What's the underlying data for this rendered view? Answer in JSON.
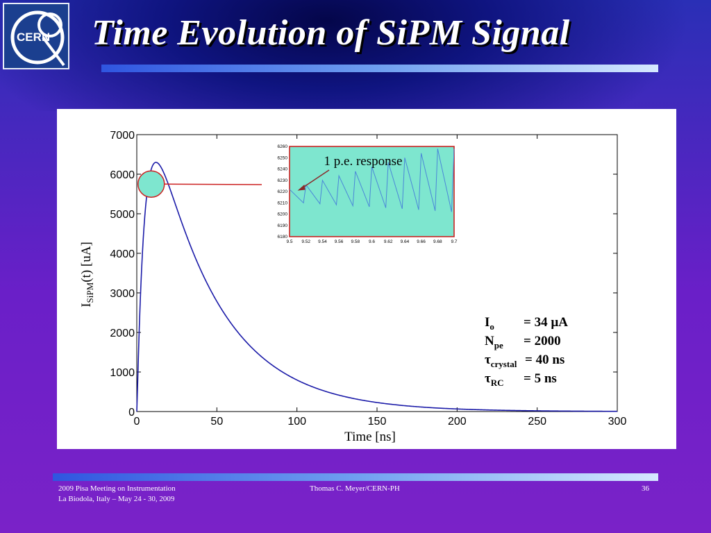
{
  "slide": {
    "title": "Time Evolution of SiPM Signal",
    "logo_text": "CERN",
    "logo_icon": "cern-logo-icon",
    "colors": {
      "curve": "#1a1aa8",
      "highlight": "#7ee6cf",
      "annotation": "#cc2222"
    }
  },
  "footer": {
    "left_line1": "2009 Pisa Meeting on Instrumentation",
    "left_line2": "La Biodola, Italy – May 24 - 30, 2009",
    "center": "Thomas C. Meyer/CERN-PH",
    "page": "36"
  },
  "legend": {
    "rows": [
      {
        "sym": "I",
        "sub": "o",
        "val": "= 34 µA"
      },
      {
        "sym": "N",
        "sub": "pe",
        "val": "= 2000"
      },
      {
        "sym": "τ",
        "sub": "crystal",
        "val": "= 40 ns"
      },
      {
        "sym": "τ",
        "sub": "RC",
        "val": "= 5 ns"
      }
    ]
  },
  "chart_data": [
    {
      "type": "line",
      "xlabel": "Time [ns]",
      "ylabel_main": "I",
      "ylabel_sub": "SiPM",
      "ylabel_rest": "(t) [uA]",
      "xlim": [
        0,
        300
      ],
      "ylim": [
        0,
        7000
      ],
      "xticks": [
        0,
        50,
        100,
        150,
        200,
        250,
        300
      ],
      "yticks": [
        0,
        1000,
        2000,
        3000,
        4000,
        5000,
        6000,
        7000
      ],
      "model": {
        "peak_value": 6300,
        "peak_time_ns": 12,
        "tau_crystal_ns": 40,
        "tau_rc_ns": 5
      },
      "series": [
        {
          "values_sampled": [
            [
              0,
              0
            ],
            [
              5,
              5050
            ],
            [
              10,
              6230
            ],
            [
              12,
              6300
            ],
            [
              15,
              6180
            ],
            [
              20,
              5500
            ],
            [
              30,
              4380
            ],
            [
              40,
              3480
            ],
            [
              50,
              2720
            ],
            [
              75,
              1450
            ],
            [
              100,
              780
            ],
            [
              125,
              420
            ],
            [
              150,
              220
            ],
            [
              175,
              120
            ],
            [
              200,
              65
            ],
            [
              250,
              20
            ],
            [
              300,
              5
            ]
          ]
        }
      ]
    },
    {
      "type": "line",
      "annotation": "1 p.e. response",
      "xlim": [
        9.5,
        9.7
      ],
      "ylim": [
        6180,
        6260
      ],
      "xticks": [
        "9.5",
        "9.52",
        "9.54",
        "9.56",
        "9.58",
        "9.6",
        "9.62",
        "9.64",
        "9.66",
        "9.68",
        "9.7"
      ],
      "yticks": [
        "6180",
        "6190",
        "6200",
        "6210",
        "6220",
        "6230",
        "6240",
        "6250",
        "6260"
      ],
      "sawtooth": {
        "teeth": 10,
        "low_start": 6215,
        "high_start": 6222,
        "low_end": 6207,
        "high_end": 6258
      }
    }
  ]
}
